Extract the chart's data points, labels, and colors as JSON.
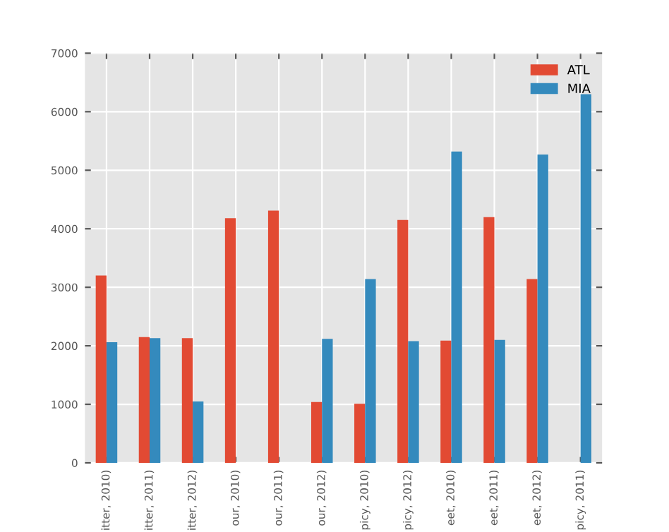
{
  "chart_data": {
    "type": "bar",
    "categories": [
      "itter, 2010)",
      "itter, 2011)",
      "itter, 2012)",
      "our, 2010)",
      "our, 2011)",
      "our, 2012)",
      "picy, 2010)",
      "picy, 2012)",
      "eet, 2010)",
      "eet, 2011)",
      "eet, 2012)",
      "picy, 2011)"
    ],
    "series": [
      {
        "name": "ATL",
        "color": "#e24a33",
        "values": [
          3200,
          2150,
          2130,
          4180,
          4310,
          1040,
          1010,
          4150,
          2090,
          4200,
          3140,
          null
        ]
      },
      {
        "name": "MIA",
        "color": "#348abd",
        "values": [
          2060,
          2130,
          1050,
          null,
          null,
          2120,
          3140,
          2080,
          5320,
          2100,
          5270,
          6300
        ]
      }
    ],
    "ylim": [
      0,
      7000
    ],
    "yticks": [
      0,
      1000,
      2000,
      3000,
      4000,
      5000,
      6000,
      7000
    ],
    "grid": true,
    "legend": "top right"
  }
}
